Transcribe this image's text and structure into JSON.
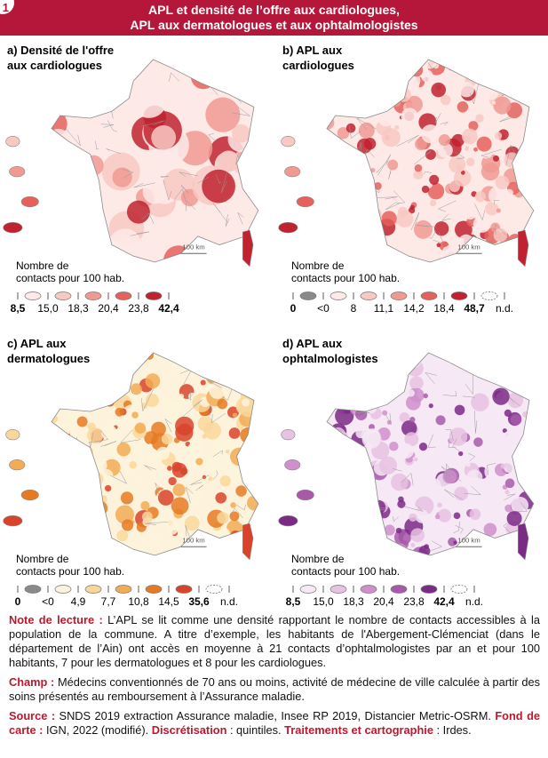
{
  "header": {
    "number": "1",
    "title": [
      "APL et densité de l’offre aux cardiologues,",
      "APL aux dermatologues et aux ophtalmologistes"
    ]
  },
  "maps": [
    {
      "label": [
        "a) Densité de l'offre",
        "aux cardiologues"
      ],
      "scale": "100 km",
      "legend_title": [
        "Nombre de",
        "contacts pour 100 hab."
      ],
      "legend_labels": [
        "8,5",
        "15,0",
        "18,3",
        "20,4",
        "23,8",
        "42,4"
      ],
      "bold": [
        0,
        5
      ],
      "swatches": [
        "#fde9e6",
        "#f8c8c2",
        "#f09a92",
        "#e5615c",
        "#c0232f"
      ]
    },
    {
      "label": [
        "b) APL aux",
        "cardiologues"
      ],
      "scale": "100 km",
      "legend_title": [
        "Nombre de",
        "contacts pour 100 hab."
      ],
      "legend_labels": [
        "0",
        "<0",
        "8",
        "11,1",
        "14,2",
        "18,4",
        "48,7",
        "n.d."
      ],
      "bold": [
        0,
        6
      ],
      "swatches": [
        "#8a8a8a",
        "#fde9e6",
        "#f8c8c2",
        "#f09a92",
        "#e5615c",
        "#c0232f",
        "#ffffff"
      ]
    },
    {
      "label": [
        "c) APL aux",
        "dermatologues"
      ],
      "scale": "100 km",
      "legend_title": [
        "Nombre de",
        "contacts pour 100 hab."
      ],
      "legend_labels": [
        "0",
        "<0",
        "4,9",
        "7,7",
        "10,8",
        "14,5",
        "35,6",
        "n.d."
      ],
      "bold": [
        0,
        6
      ],
      "swatches": [
        "#8a8a8a",
        "#fdf3dc",
        "#f9d79a",
        "#f2ac55",
        "#e67a22",
        "#d9432b",
        "#ffffff"
      ]
    },
    {
      "label": [
        "d) APL aux",
        "ophtalmologistes"
      ],
      "scale": "100 km",
      "legend_title": [
        "Nombre de",
        "contacts pour 100 hab."
      ],
      "legend_labels": [
        "8,5",
        "15,0",
        "18,3",
        "20,4",
        "23,8",
        "42,4",
        "n.d."
      ],
      "bold": [
        0,
        5
      ],
      "swatches": [
        "#f6e8f4",
        "#e7c2e2",
        "#cf8fcb",
        "#a85aaa",
        "#7b2a86",
        "#ffffff"
      ]
    }
  ],
  "notes": [
    [
      {
        "label": "Note de lecture :",
        "text": " L’APL se lit comme une densité rapportant le nombre de contacts accessibles à la population de la commune. A titre d’exemple, les habitants de l'Abergement-Clémenciat (dans le département de l’Ain) ont accès en moyenne à 21 contacts d’ophtalmologistes par an et pour 100 habitants, 7 pour les dermatologues et 8 pour les cardiologues."
      }
    ],
    [
      {
        "label": "Champ :",
        "text": " Médecins conventionnés de 70 ans ou moins, activité de médecine de ville calculée à partir des soins présentés au remboursement à l’Assurance maladie."
      }
    ],
    [
      {
        "label": "Source :",
        "text": " SNDS 2019 extraction Assurance maladie, Insee RP 2019, Distancier Metric-OSRM. "
      },
      {
        "label": "Fond de carte :",
        "text": " IGN, 2022 (modifié). "
      },
      {
        "label": "Discrétisation",
        "text": " : quintiles. "
      },
      {
        "label": "Traitements et cartographie",
        "text": " : Irdes."
      }
    ]
  ]
}
